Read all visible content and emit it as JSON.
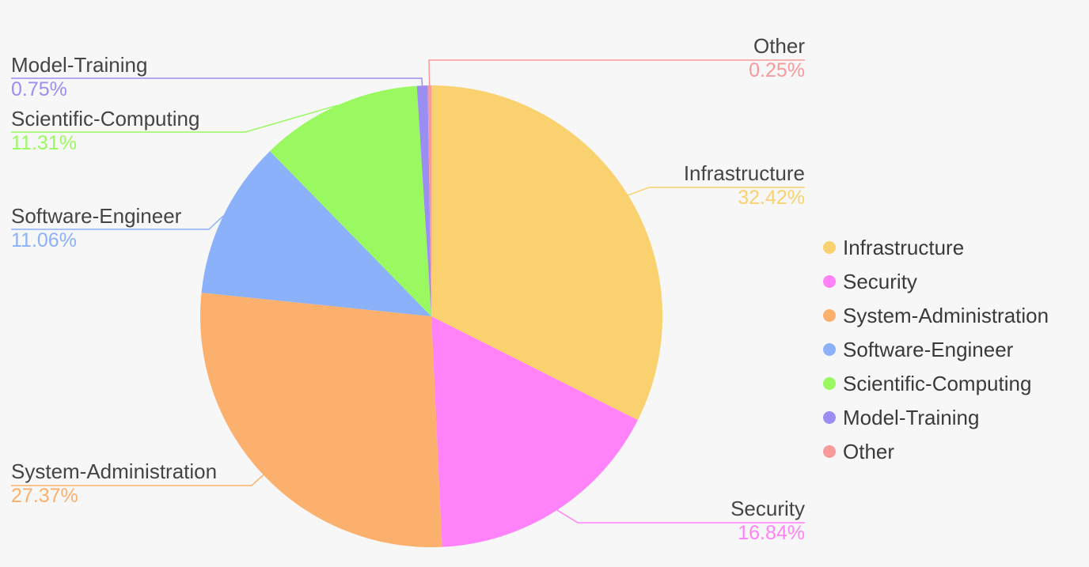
{
  "chart_data": {
    "type": "pie",
    "title": "",
    "legend_position": "right",
    "start_angle_deg": 0,
    "direction": "clockwise",
    "slices": [
      {
        "name": "Infrastructure",
        "value": 32.42,
        "label": "32.42%",
        "color": "#f9d16e"
      },
      {
        "name": "Security",
        "value": 16.84,
        "label": "16.84%",
        "color": "#ff82f8"
      },
      {
        "name": "System-Administration",
        "value": 27.37,
        "label": "27.37%",
        "color": "#fcb06d"
      },
      {
        "name": "Software-Engineer",
        "value": 11.06,
        "label": "11.06%",
        "color": "#8ab1f9"
      },
      {
        "name": "Scientific-Computing",
        "value": 11.31,
        "label": "11.31%",
        "color": "#9af961"
      },
      {
        "name": "Model-Training",
        "value": 0.75,
        "label": "0.75%",
        "color": "#9b8ef2"
      },
      {
        "name": "Other",
        "value": 0.25,
        "label": "0.25%",
        "color": "#f99a9a"
      }
    ]
  }
}
